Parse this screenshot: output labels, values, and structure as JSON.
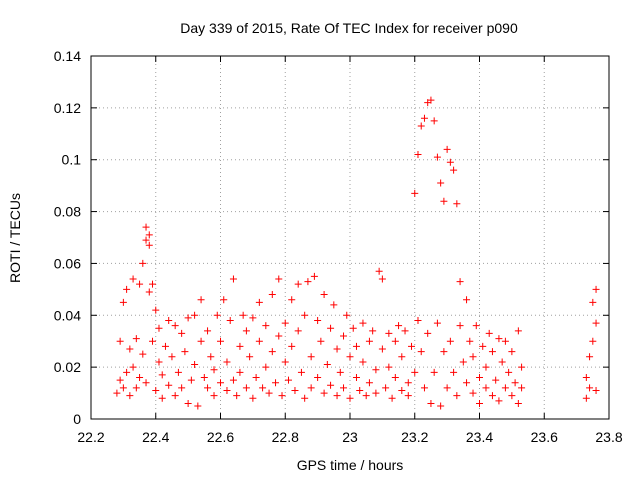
{
  "chart_data": {
    "type": "scatter",
    "title": "Day 339 of 2015, Rate Of TEC Index for receiver p090",
    "xlabel": "GPS time / hours",
    "ylabel": "ROTI / TECUs",
    "xlim": [
      22.2,
      23.8
    ],
    "ylim": [
      0,
      0.14
    ],
    "xticks": [
      "22.2",
      "22.4",
      "22.6",
      "22.8",
      "23",
      "23.2",
      "23.4",
      "23.6",
      "23.8"
    ],
    "yticks": [
      "0",
      "0.02",
      "0.04",
      "0.06",
      "0.08",
      "0.1",
      "0.12",
      "0.14"
    ],
    "grid": true,
    "marker": "+",
    "series_color": "#ff0000",
    "series": [
      {
        "points": [
          [
            22.28,
            0.01
          ],
          [
            22.29,
            0.015
          ],
          [
            22.29,
            0.03
          ],
          [
            22.3,
            0.012
          ],
          [
            22.3,
            0.045
          ],
          [
            22.31,
            0.018
          ],
          [
            22.31,
            0.05
          ],
          [
            22.32,
            0.009
          ],
          [
            22.32,
            0.027
          ],
          [
            22.33,
            0.054
          ],
          [
            22.33,
            0.02
          ],
          [
            22.34,
            0.012
          ],
          [
            22.34,
            0.031
          ],
          [
            22.35,
            0.052
          ],
          [
            22.35,
            0.016
          ],
          [
            22.36,
            0.06
          ],
          [
            22.36,
            0.025
          ],
          [
            22.37,
            0.069
          ],
          [
            22.37,
            0.074
          ],
          [
            22.37,
            0.014
          ],
          [
            22.38,
            0.071
          ],
          [
            22.38,
            0.049
          ],
          [
            22.38,
            0.067
          ],
          [
            22.39,
            0.052
          ],
          [
            22.39,
            0.03
          ],
          [
            22.4,
            0.042
          ],
          [
            22.4,
            0.011
          ],
          [
            22.41,
            0.022
          ],
          [
            22.41,
            0.035
          ],
          [
            22.42,
            0.017
          ],
          [
            22.42,
            0.008
          ],
          [
            22.43,
            0.028
          ],
          [
            22.44,
            0.013
          ],
          [
            22.44,
            0.038
          ],
          [
            22.45,
            0.024
          ],
          [
            22.46,
            0.009
          ],
          [
            22.46,
            0.036
          ],
          [
            22.47,
            0.018
          ],
          [
            22.48,
            0.033
          ],
          [
            22.48,
            0.012
          ],
          [
            22.49,
            0.026
          ],
          [
            22.5,
            0.039
          ],
          [
            22.5,
            0.006
          ],
          [
            22.51,
            0.015
          ],
          [
            22.52,
            0.04
          ],
          [
            22.52,
            0.021
          ],
          [
            22.53,
            0.005
          ],
          [
            22.54,
            0.03
          ],
          [
            22.54,
            0.046
          ],
          [
            22.55,
            0.016
          ],
          [
            22.56,
            0.012
          ],
          [
            22.56,
            0.034
          ],
          [
            22.57,
            0.024
          ],
          [
            22.58,
            0.009
          ],
          [
            22.58,
            0.019
          ],
          [
            22.59,
            0.04
          ],
          [
            22.6,
            0.014
          ],
          [
            22.6,
            0.03
          ],
          [
            22.61,
            0.046
          ],
          [
            22.62,
            0.011
          ],
          [
            22.62,
            0.022
          ],
          [
            22.63,
            0.038
          ],
          [
            22.64,
            0.015
          ],
          [
            22.64,
            0.054
          ],
          [
            22.65,
            0.009
          ],
          [
            22.66,
            0.028
          ],
          [
            22.66,
            0.018
          ],
          [
            22.67,
            0.04
          ],
          [
            22.68,
            0.012
          ],
          [
            22.68,
            0.034
          ],
          [
            22.69,
            0.024
          ],
          [
            22.7,
            0.008
          ],
          [
            22.7,
            0.039
          ],
          [
            22.71,
            0.016
          ],
          [
            22.72,
            0.03
          ],
          [
            22.72,
            0.045
          ],
          [
            22.73,
            0.012
          ],
          [
            22.74,
            0.02
          ],
          [
            22.74,
            0.036
          ],
          [
            22.75,
            0.01
          ],
          [
            22.76,
            0.026
          ],
          [
            22.76,
            0.048
          ],
          [
            22.77,
            0.014
          ],
          [
            22.78,
            0.032
          ],
          [
            22.78,
            0.054
          ],
          [
            22.79,
            0.009
          ],
          [
            22.8,
            0.022
          ],
          [
            22.8,
            0.037
          ],
          [
            22.81,
            0.015
          ],
          [
            22.82,
            0.046
          ],
          [
            22.82,
            0.028
          ],
          [
            22.83,
            0.011
          ],
          [
            22.84,
            0.052
          ],
          [
            22.84,
            0.034
          ],
          [
            22.85,
            0.018
          ],
          [
            22.86,
            0.008
          ],
          [
            22.86,
            0.04
          ],
          [
            22.87,
            0.053
          ],
          [
            22.88,
            0.024
          ],
          [
            22.88,
            0.012
          ],
          [
            22.89,
            0.055
          ],
          [
            22.9,
            0.038
          ],
          [
            22.9,
            0.016
          ],
          [
            22.91,
            0.03
          ],
          [
            22.92,
            0.01
          ],
          [
            22.92,
            0.048
          ],
          [
            22.93,
            0.021
          ],
          [
            22.94,
            0.035
          ],
          [
            22.94,
            0.013
          ],
          [
            22.95,
            0.044
          ],
          [
            22.96,
            0.027
          ],
          [
            22.96,
            0.009
          ],
          [
            22.97,
            0.018
          ],
          [
            22.98,
            0.032
          ],
          [
            22.98,
            0.012
          ],
          [
            22.99,
            0.04
          ],
          [
            23.0,
            0.024
          ],
          [
            23.0,
            0.008
          ],
          [
            23.01,
            0.035
          ],
          [
            23.02,
            0.016
          ],
          [
            23.02,
            0.028
          ],
          [
            23.03,
            0.011
          ],
          [
            23.04,
            0.037
          ],
          [
            23.04,
            0.022
          ],
          [
            23.05,
            0.009
          ],
          [
            23.06,
            0.03
          ],
          [
            23.06,
            0.014
          ],
          [
            23.07,
            0.034
          ],
          [
            23.08,
            0.019
          ],
          [
            23.08,
            0.01
          ],
          [
            23.09,
            0.057
          ],
          [
            23.1,
            0.054
          ],
          [
            23.1,
            0.027
          ],
          [
            23.11,
            0.012
          ],
          [
            23.12,
            0.033
          ],
          [
            23.12,
            0.02
          ],
          [
            23.13,
            0.008
          ],
          [
            23.14,
            0.03
          ],
          [
            23.14,
            0.016
          ],
          [
            23.15,
            0.036
          ],
          [
            23.16,
            0.011
          ],
          [
            23.16,
            0.024
          ],
          [
            23.17,
            0.034
          ],
          [
            23.18,
            0.014
          ],
          [
            23.18,
            0.009
          ],
          [
            23.19,
            0.028
          ],
          [
            23.2,
            0.087
          ],
          [
            23.2,
            0.018
          ],
          [
            23.21,
            0.102
          ],
          [
            23.21,
            0.038
          ],
          [
            23.22,
            0.113
          ],
          [
            23.22,
            0.026
          ],
          [
            23.23,
            0.116
          ],
          [
            23.23,
            0.012
          ],
          [
            23.24,
            0.122
          ],
          [
            23.24,
            0.033
          ],
          [
            23.25,
            0.123
          ],
          [
            23.25,
            0.006
          ],
          [
            23.26,
            0.115
          ],
          [
            23.26,
            0.018
          ],
          [
            23.27,
            0.101
          ],
          [
            23.27,
            0.037
          ],
          [
            23.28,
            0.091
          ],
          [
            23.28,
            0.005
          ],
          [
            23.29,
            0.084
          ],
          [
            23.29,
            0.026
          ],
          [
            23.3,
            0.104
          ],
          [
            23.3,
            0.012
          ],
          [
            23.31,
            0.099
          ],
          [
            23.31,
            0.03
          ],
          [
            23.32,
            0.096
          ],
          [
            23.32,
            0.018
          ],
          [
            23.33,
            0.083
          ],
          [
            23.33,
            0.009
          ],
          [
            23.34,
            0.053
          ],
          [
            23.34,
            0.036
          ],
          [
            23.35,
            0.022
          ],
          [
            23.36,
            0.046
          ],
          [
            23.36,
            0.014
          ],
          [
            23.37,
            0.03
          ],
          [
            23.38,
            0.01
          ],
          [
            23.38,
            0.024
          ],
          [
            23.39,
            0.036
          ],
          [
            23.4,
            0.016
          ],
          [
            23.4,
            0.006
          ],
          [
            23.41,
            0.028
          ],
          [
            23.42,
            0.012
          ],
          [
            23.42,
            0.02
          ],
          [
            23.43,
            0.033
          ],
          [
            23.44,
            0.009
          ],
          [
            23.44,
            0.026
          ],
          [
            23.45,
            0.015
          ],
          [
            23.46,
            0.031
          ],
          [
            23.46,
            0.007
          ],
          [
            23.47,
            0.022
          ],
          [
            23.48,
            0.012
          ],
          [
            23.48,
            0.03
          ],
          [
            23.49,
            0.018
          ],
          [
            23.5,
            0.009
          ],
          [
            23.5,
            0.026
          ],
          [
            23.51,
            0.014
          ],
          [
            23.52,
            0.034
          ],
          [
            23.52,
            0.006
          ],
          [
            23.53,
            0.02
          ],
          [
            23.53,
            0.012
          ],
          [
            23.73,
            0.008
          ],
          [
            23.73,
            0.016
          ],
          [
            23.74,
            0.024
          ],
          [
            23.74,
            0.012
          ],
          [
            23.75,
            0.03
          ],
          [
            23.75,
            0.045
          ],
          [
            23.76,
            0.037
          ],
          [
            23.76,
            0.05
          ],
          [
            23.76,
            0.011
          ]
        ]
      }
    ]
  }
}
